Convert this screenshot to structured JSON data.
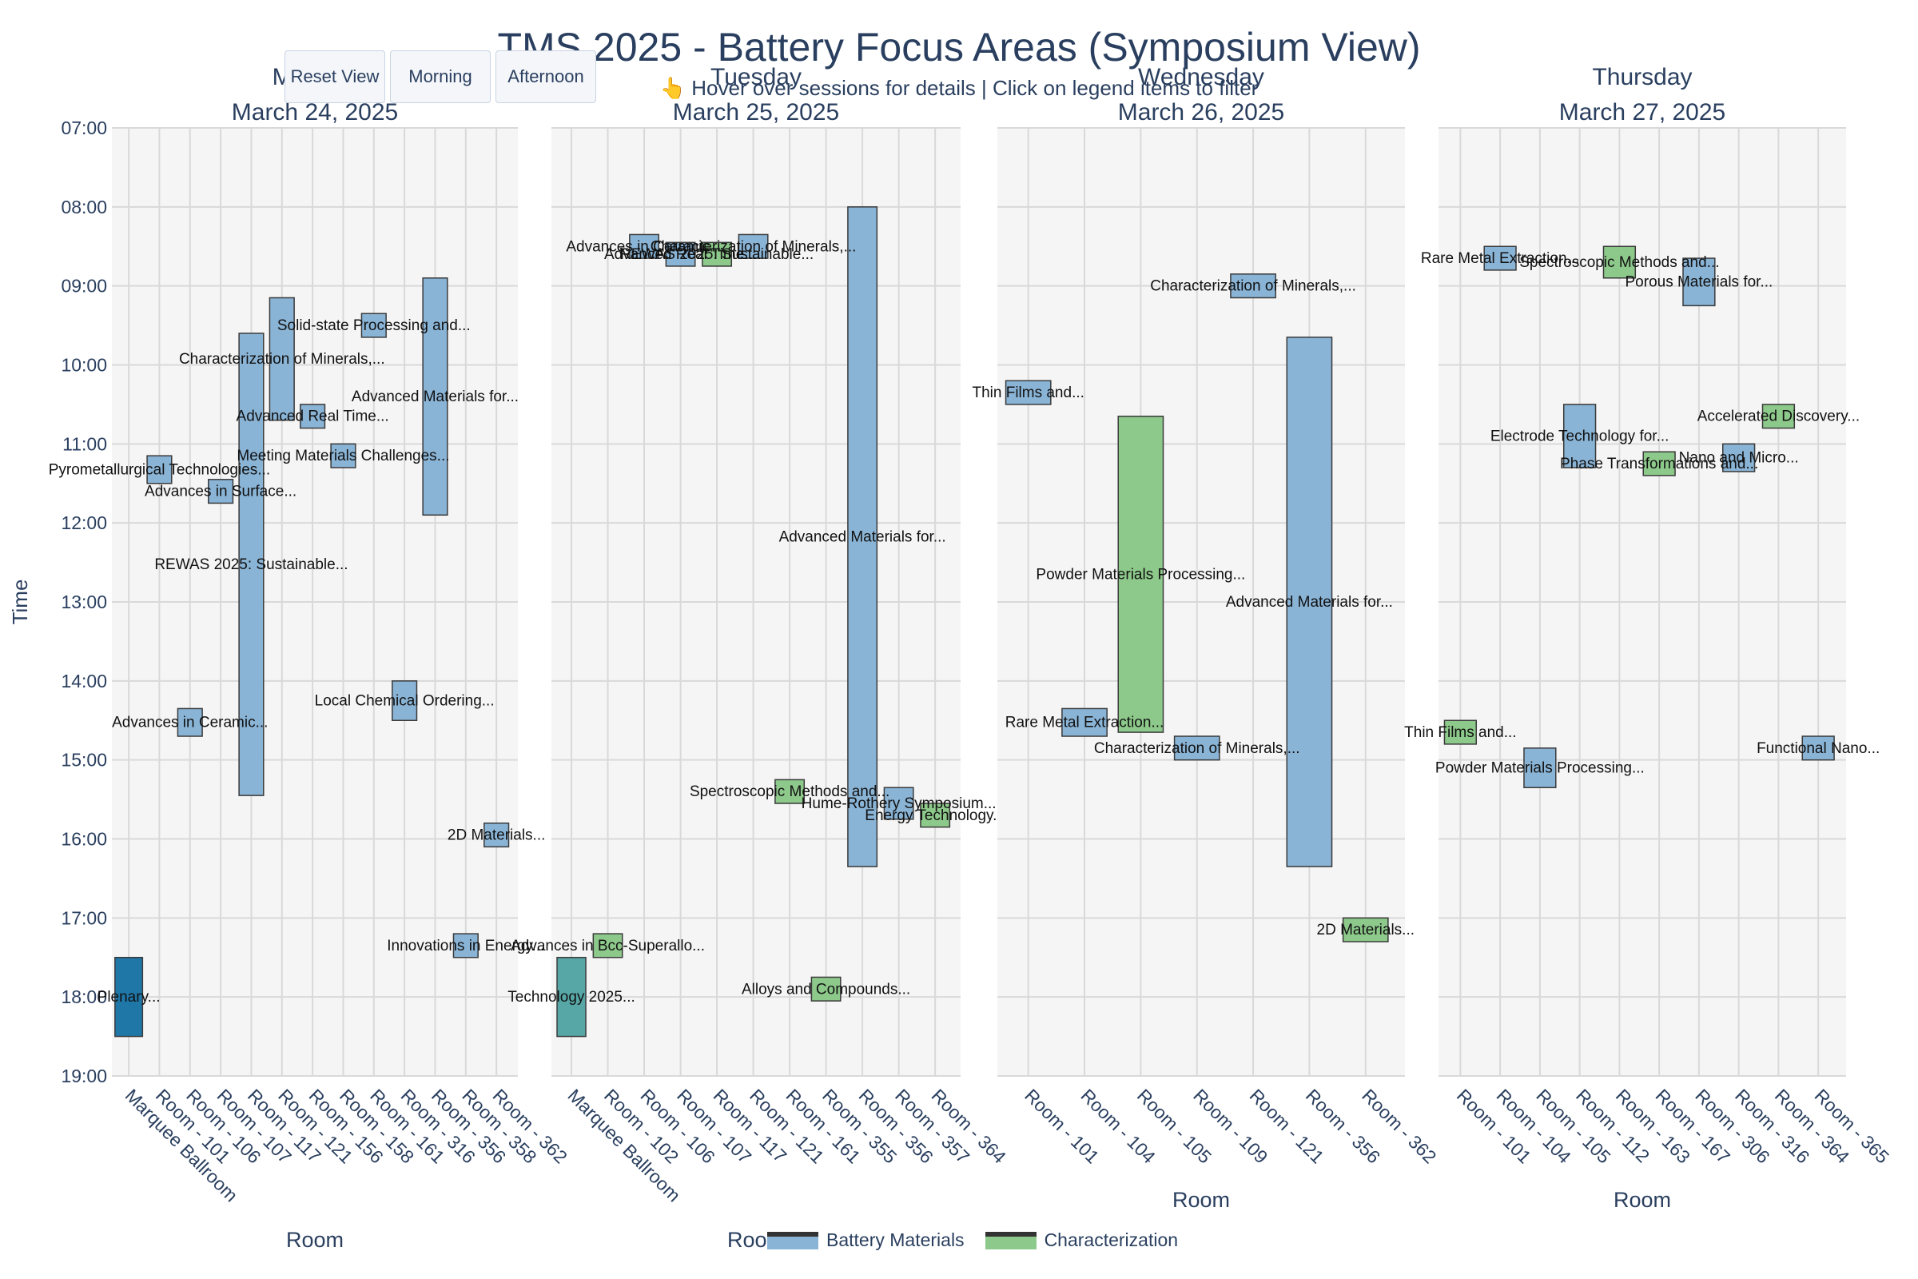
{
  "title": "TMS 2025 - Battery Focus Areas (Symposium View)",
  "subtitle": "👆 Hover over sessions for details | Click on legend items to filter",
  "buttons": {
    "reset": "Reset View",
    "morning": "Morning",
    "afternoon": "Afternoon"
  },
  "colors": {
    "Battery Materials": "#8ab4d6",
    "Characterization": "#8dc98a",
    "plenary": "#1f77a8",
    "plenary2": "#58a7a7"
  },
  "legend": [
    {
      "label": "Battery Materials",
      "color": "#8ab4d6"
    },
    {
      "label": "Characterization",
      "color": "#8dc98a"
    }
  ],
  "chart_data": {
    "type": "bar",
    "ylabel": "Time",
    "y_ticks": [
      "07:00",
      "08:00",
      "09:00",
      "10:00",
      "11:00",
      "12:00",
      "13:00",
      "14:00",
      "15:00",
      "16:00",
      "17:00",
      "18:00",
      "19:00"
    ],
    "y_range": [
      "07:00",
      "19:00"
    ],
    "grid": true,
    "legend_placement": "bottom-center",
    "panels": [
      {
        "title_line1": "Monday",
        "title_line2": "March 24, 2025",
        "xlabel": "Room",
        "rooms": [
          "Marquee Ballroom",
          "Room - 101",
          "Room - 106",
          "Room - 107",
          "Room - 117",
          "Room - 121",
          "Room - 156",
          "Room - 158",
          "Room - 161",
          "Room - 316",
          "Room - 356",
          "Room - 358",
          "Room - 362"
        ],
        "sessions": [
          {
            "room": "Marquee Ballroom",
            "start": 17.5,
            "end": 18.5,
            "cat": "plenary",
            "label": "Plenary..."
          },
          {
            "room": "Room - 101",
            "start": 11.15,
            "end": 11.5,
            "cat": "Battery Materials",
            "label": "Pyrometallurgical Technologies..."
          },
          {
            "room": "Room - 107",
            "start": 11.45,
            "end": 11.75,
            "cat": "Battery Materials",
            "label": "Advances in Surface..."
          },
          {
            "room": "Room - 106",
            "start": 14.35,
            "end": 14.7,
            "cat": "Battery Materials",
            "label": "Advances in Ceramic..."
          },
          {
            "room": "Room - 117",
            "start": 9.6,
            "end": 15.45,
            "cat": "Battery Materials",
            "label": "REWAS 2025: Sustainable..."
          },
          {
            "room": "Room - 121",
            "start": 9.15,
            "end": 10.7,
            "cat": "Battery Materials",
            "label": "Characterization of Minerals,..."
          },
          {
            "room": "Room - 156",
            "start": 10.5,
            "end": 10.8,
            "cat": "Battery Materials",
            "label": "Advanced Real Time..."
          },
          {
            "room": "Room - 158",
            "start": 11.0,
            "end": 11.3,
            "cat": "Battery Materials",
            "label": "Meeting Materials Challenges..."
          },
          {
            "room": "Room - 161",
            "start": 9.35,
            "end": 9.65,
            "cat": "Battery Materials",
            "label": "Solid-state Processing and..."
          },
          {
            "room": "Room - 316",
            "start": 14.0,
            "end": 14.5,
            "cat": "Battery Materials",
            "label": "Local Chemical Ordering..."
          },
          {
            "room": "Room - 356",
            "start": 8.9,
            "end": 11.9,
            "cat": "Battery Materials",
            "label": "Advanced Materials for..."
          },
          {
            "room": "Room - 358",
            "start": 17.2,
            "end": 17.5,
            "cat": "Battery Materials",
            "label": "Innovations in Energy..."
          },
          {
            "room": "Room - 362",
            "start": 15.8,
            "end": 16.1,
            "cat": "Battery Materials",
            "label": "2D Materials..."
          }
        ]
      },
      {
        "title_line1": "Tuesday",
        "title_line2": "March 25, 2025",
        "xlabel": "Room",
        "rooms": [
          "Marquee Ballroom",
          "Room - 102",
          "Room - 106",
          "Room - 107",
          "Room - 117",
          "Room - 121",
          "Room - 161",
          "Room - 355",
          "Room - 356",
          "Room - 357",
          "Room - 364"
        ],
        "sessions": [
          {
            "room": "Marquee Ballroom",
            "start": 17.5,
            "end": 18.5,
            "cat": "plenary2",
            "label": "Technology 2025..."
          },
          {
            "room": "Room - 102",
            "start": 17.2,
            "end": 17.5,
            "cat": "Characterization",
            "label": "Advances in Bcc-Superallo..."
          },
          {
            "room": "Room - 106",
            "start": 8.35,
            "end": 8.65,
            "cat": "Battery Materials",
            "label": "Advances in Ceramic..."
          },
          {
            "room": "Room - 107",
            "start": 8.45,
            "end": 8.75,
            "cat": "Battery Materials",
            "label": "Advanced Real Time..."
          },
          {
            "room": "Room - 117",
            "start": 8.45,
            "end": 8.75,
            "cat": "Characterization",
            "label": "REWAS 2025: Sustainable..."
          },
          {
            "room": "Room - 121",
            "start": 8.35,
            "end": 8.65,
            "cat": "Battery Materials",
            "label": "Characterization of Minerals,..."
          },
          {
            "room": "Room - 161",
            "start": 15.25,
            "end": 15.55,
            "cat": "Characterization",
            "label": "Spectroscopic Methods and..."
          },
          {
            "room": "Room - 355",
            "start": 17.75,
            "end": 18.05,
            "cat": "Characterization",
            "label": "Alloys and Compounds..."
          },
          {
            "room": "Room - 356",
            "start": 8.0,
            "end": 16.35,
            "cat": "Battery Materials",
            "label": "Advanced Materials for..."
          },
          {
            "room": "Room - 357",
            "start": 15.35,
            "end": 15.75,
            "cat": "Battery Materials",
            "label": "Hume-Rothery Symposium..."
          },
          {
            "room": "Room - 364",
            "start": 15.55,
            "end": 15.85,
            "cat": "Characterization",
            "label": "Energy Technology..."
          }
        ]
      },
      {
        "title_line1": "Wednesday",
        "title_line2": "March 26, 2025",
        "xlabel": "Room",
        "rooms": [
          "Room - 101",
          "Room - 104",
          "Room - 105",
          "Room - 109",
          "Room - 121",
          "Room - 356",
          "Room - 362"
        ],
        "sessions": [
          {
            "room": "Room - 101",
            "start": 10.2,
            "end": 10.5,
            "cat": "Battery Materials",
            "label": "Thin Films and..."
          },
          {
            "room": "Room - 104",
            "start": 14.35,
            "end": 14.7,
            "cat": "Battery Materials",
            "label": "Rare Metal Extraction..."
          },
          {
            "room": "Room - 105",
            "start": 10.65,
            "end": 14.65,
            "cat": "Characterization",
            "label": "Powder Materials Processing..."
          },
          {
            "room": "Room - 109",
            "start": 14.7,
            "end": 15.0,
            "cat": "Battery Materials",
            "label": "Characterization of Minerals,..."
          },
          {
            "room": "Room - 121",
            "start": 8.85,
            "end": 9.15,
            "cat": "Battery Materials",
            "label": "Characterization of Minerals,..."
          },
          {
            "room": "Room - 356",
            "start": 9.65,
            "end": 16.35,
            "cat": "Battery Materials",
            "label": "Advanced Materials for..."
          },
          {
            "room": "Room - 362",
            "start": 17.0,
            "end": 17.3,
            "cat": "Characterization",
            "label": "2D Materials..."
          }
        ]
      },
      {
        "title_line1": "Thursday",
        "title_line2": "March 27, 2025",
        "xlabel": "Room",
        "rooms": [
          "Room - 101",
          "Room - 104",
          "Room - 105",
          "Room - 112",
          "Room - 163",
          "Room - 167",
          "Room - 306",
          "Room - 316",
          "Room - 364",
          "Room - 365"
        ],
        "sessions": [
          {
            "room": "Room - 101",
            "start": 14.5,
            "end": 14.8,
            "cat": "Characterization",
            "label": "Thin Films and..."
          },
          {
            "room": "Room - 104",
            "start": 8.5,
            "end": 8.8,
            "cat": "Battery Materials",
            "label": "Rare Metal Extraction..."
          },
          {
            "room": "Room - 105",
            "start": 14.85,
            "end": 15.35,
            "cat": "Battery Materials",
            "label": "Powder Materials Processing..."
          },
          {
            "room": "Room - 112",
            "start": 10.5,
            "end": 11.3,
            "cat": "Battery Materials",
            "label": "Electrode Technology for..."
          },
          {
            "room": "Room - 163",
            "start": 8.5,
            "end": 8.9,
            "cat": "Characterization",
            "label": "Spectroscopic Methods and..."
          },
          {
            "room": "Room - 167",
            "start": 11.1,
            "end": 11.4,
            "cat": "Characterization",
            "label": "Phase Transformations and..."
          },
          {
            "room": "Room - 306",
            "start": 8.65,
            "end": 9.25,
            "cat": "Battery Materials",
            "label": "Porous Materials for..."
          },
          {
            "room": "Room - 316",
            "start": 11.0,
            "end": 11.35,
            "cat": "Battery Materials",
            "label": "Nano and Micro..."
          },
          {
            "room": "Room - 364",
            "start": 10.5,
            "end": 10.8,
            "cat": "Characterization",
            "label": "Accelerated Discovery..."
          },
          {
            "room": "Room - 365",
            "start": 14.7,
            "end": 15.0,
            "cat": "Battery Materials",
            "label": "Functional Nano..."
          }
        ]
      }
    ]
  }
}
